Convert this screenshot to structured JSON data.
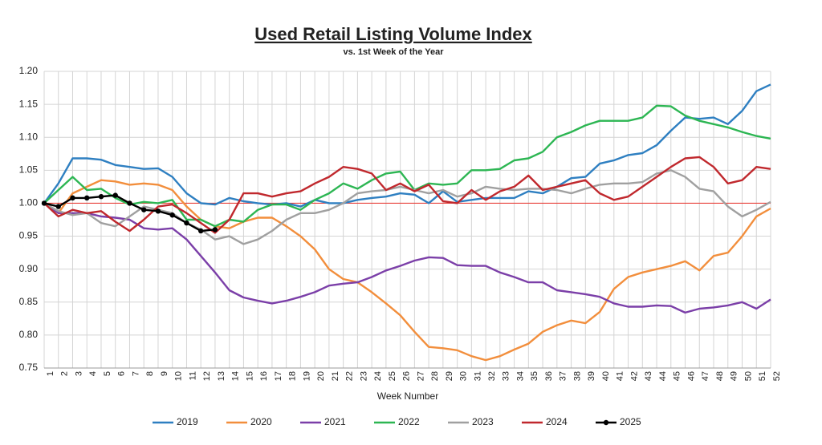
{
  "chart_data": {
    "type": "line",
    "title": "Used Retail Listing Volume Index",
    "subtitle": "vs. 1st Week of the Year",
    "x_label": "Week Number",
    "categories": [
      "1",
      "2",
      "3",
      "4",
      "5",
      "6",
      "7",
      "8",
      "9",
      "10",
      "11",
      "12",
      "13",
      "14",
      "15",
      "16",
      "17",
      "18",
      "19",
      "20",
      "21",
      "22",
      "23",
      "24",
      "25",
      "26",
      "27",
      "28",
      "29",
      "30",
      "31",
      "32",
      "33",
      "34",
      "35",
      "36",
      "37",
      "38",
      "39",
      "40",
      "41",
      "42",
      "43",
      "44",
      "45",
      "46",
      "47",
      "48",
      "49",
      "50",
      "51",
      "52"
    ],
    "ylim": [
      0.75,
      1.2
    ],
    "yticks": [
      0.75,
      {
        "value": 0.8,
        "label": "0.80"
      },
      0.85,
      {
        "value": 0.9,
        "label": "0.90"
      },
      0.95,
      {
        "value": 1.0,
        "label": "1.00"
      },
      1.05,
      {
        "value": 1.1,
        "label": "1.10"
      },
      1.15,
      {
        "value": 1.2,
        "label": "1.20"
      }
    ],
    "grid": true,
    "reference_line": {
      "value": 1.0,
      "color": "#e8403a"
    },
    "legend": "bottom",
    "series": [
      {
        "name": "2019",
        "color": "#2e7fc1",
        "values": [
          1.0,
          1.03,
          1.068,
          1.068,
          1.066,
          1.058,
          1.055,
          1.052,
          1.053,
          1.04,
          1.015,
          1.0,
          0.998,
          1.008,
          1.003,
          1.0,
          0.998,
          1.0,
          0.995,
          1.005,
          1.0,
          1.0,
          1.005,
          1.008,
          1.01,
          1.015,
          1.013,
          1.0,
          1.018,
          1.002,
          1.005,
          1.008,
          1.008,
          1.008,
          1.018,
          1.015,
          1.025,
          1.038,
          1.04,
          1.06,
          1.065,
          1.073,
          1.076,
          1.088,
          1.11,
          1.13,
          1.128,
          1.13,
          1.12,
          1.14,
          1.17,
          1.18
        ]
      },
      {
        "name": "2020",
        "color": "#f28e3c",
        "values": [
          1.0,
          0.985,
          1.015,
          1.025,
          1.035,
          1.033,
          1.028,
          1.03,
          1.028,
          1.02,
          0.995,
          0.975,
          0.965,
          0.962,
          0.972,
          0.978,
          0.978,
          0.965,
          0.95,
          0.93,
          0.9,
          0.885,
          0.88,
          0.865,
          0.848,
          0.83,
          0.805,
          0.782,
          0.78,
          0.777,
          0.768,
          0.762,
          0.768,
          0.778,
          0.787,
          0.805,
          0.815,
          0.822,
          0.818,
          0.835,
          0.87,
          0.888,
          0.895,
          0.9,
          0.905,
          0.912,
          0.898,
          0.92,
          0.925,
          0.95,
          0.98,
          0.992
        ]
      },
      {
        "name": "2021",
        "color": "#7b3fa8",
        "values": [
          1.0,
          0.985,
          0.985,
          0.985,
          0.98,
          0.978,
          0.975,
          0.962,
          0.96,
          0.962,
          0.945,
          0.92,
          0.895,
          0.868,
          0.857,
          0.852,
          0.848,
          0.852,
          0.858,
          0.865,
          0.875,
          0.878,
          0.88,
          0.888,
          0.898,
          0.905,
          0.913,
          0.918,
          0.917,
          0.906,
          0.905,
          0.905,
          0.895,
          0.888,
          0.88,
          0.88,
          0.868,
          0.865,
          0.862,
          0.858,
          0.848,
          0.843,
          0.843,
          0.845,
          0.844,
          0.834,
          0.84,
          0.842,
          0.845,
          0.85,
          0.84,
          0.854
        ]
      },
      {
        "name": "2022",
        "color": "#2db653",
        "values": [
          1.0,
          1.02,
          1.04,
          1.02,
          1.022,
          1.008,
          0.998,
          1.002,
          1.0,
          1.005,
          0.975,
          0.975,
          0.965,
          0.975,
          0.972,
          0.99,
          0.998,
          0.998,
          0.99,
          1.005,
          1.015,
          1.03,
          1.022,
          1.035,
          1.045,
          1.048,
          1.02,
          1.03,
          1.028,
          1.03,
          1.05,
          1.05,
          1.052,
          1.065,
          1.068,
          1.078,
          1.1,
          1.108,
          1.118,
          1.125,
          1.125,
          1.125,
          1.13,
          1.148,
          1.147,
          1.133,
          1.125,
          1.12,
          1.115,
          1.108,
          1.102,
          1.098
        ]
      },
      {
        "name": "2023",
        "color": "#a0a0a0",
        "values": [
          1.0,
          0.988,
          0.982,
          0.985,
          0.97,
          0.965,
          0.98,
          0.995,
          0.99,
          0.985,
          0.97,
          0.96,
          0.945,
          0.95,
          0.938,
          0.945,
          0.958,
          0.975,
          0.985,
          0.985,
          0.99,
          1.0,
          1.015,
          1.018,
          1.02,
          1.025,
          1.02,
          1.015,
          1.02,
          1.01,
          1.015,
          1.025,
          1.022,
          1.02,
          1.022,
          1.022,
          1.02,
          1.015,
          1.022,
          1.028,
          1.03,
          1.03,
          1.032,
          1.045,
          1.05,
          1.04,
          1.022,
          1.018,
          0.995,
          0.98,
          0.99,
          1.002
        ]
      },
      {
        "name": "2024",
        "color": "#c0282d",
        "values": [
          1.0,
          0.98,
          0.99,
          0.985,
          0.988,
          0.972,
          0.958,
          0.975,
          0.995,
          0.998,
          0.985,
          0.97,
          0.955,
          0.975,
          1.015,
          1.015,
          1.01,
          1.015,
          1.018,
          1.03,
          1.04,
          1.055,
          1.052,
          1.045,
          1.02,
          1.03,
          1.018,
          1.028,
          1.003,
          1.0,
          1.02,
          1.005,
          1.018,
          1.025,
          1.042,
          1.02,
          1.025,
          1.03,
          1.035,
          1.015,
          1.005,
          1.01,
          1.025,
          1.04,
          1.055,
          1.068,
          1.07,
          1.055,
          1.03,
          1.035,
          1.055,
          1.052
        ]
      },
      {
        "name": "2025",
        "color": "#000000",
        "marker": "circle",
        "values": [
          1.0,
          0.995,
          1.008,
          1.008,
          1.01,
          1.012,
          1.0,
          0.99,
          0.988,
          0.982,
          0.97,
          0.958,
          0.96,
          null,
          null,
          null,
          null,
          null,
          null,
          null,
          null,
          null,
          null,
          null,
          null,
          null,
          null,
          null,
          null,
          null,
          null,
          null,
          null,
          null,
          null,
          null,
          null,
          null,
          null,
          null,
          null,
          null,
          null,
          null,
          null,
          null,
          null,
          null,
          null,
          null,
          null,
          null
        ]
      }
    ]
  }
}
